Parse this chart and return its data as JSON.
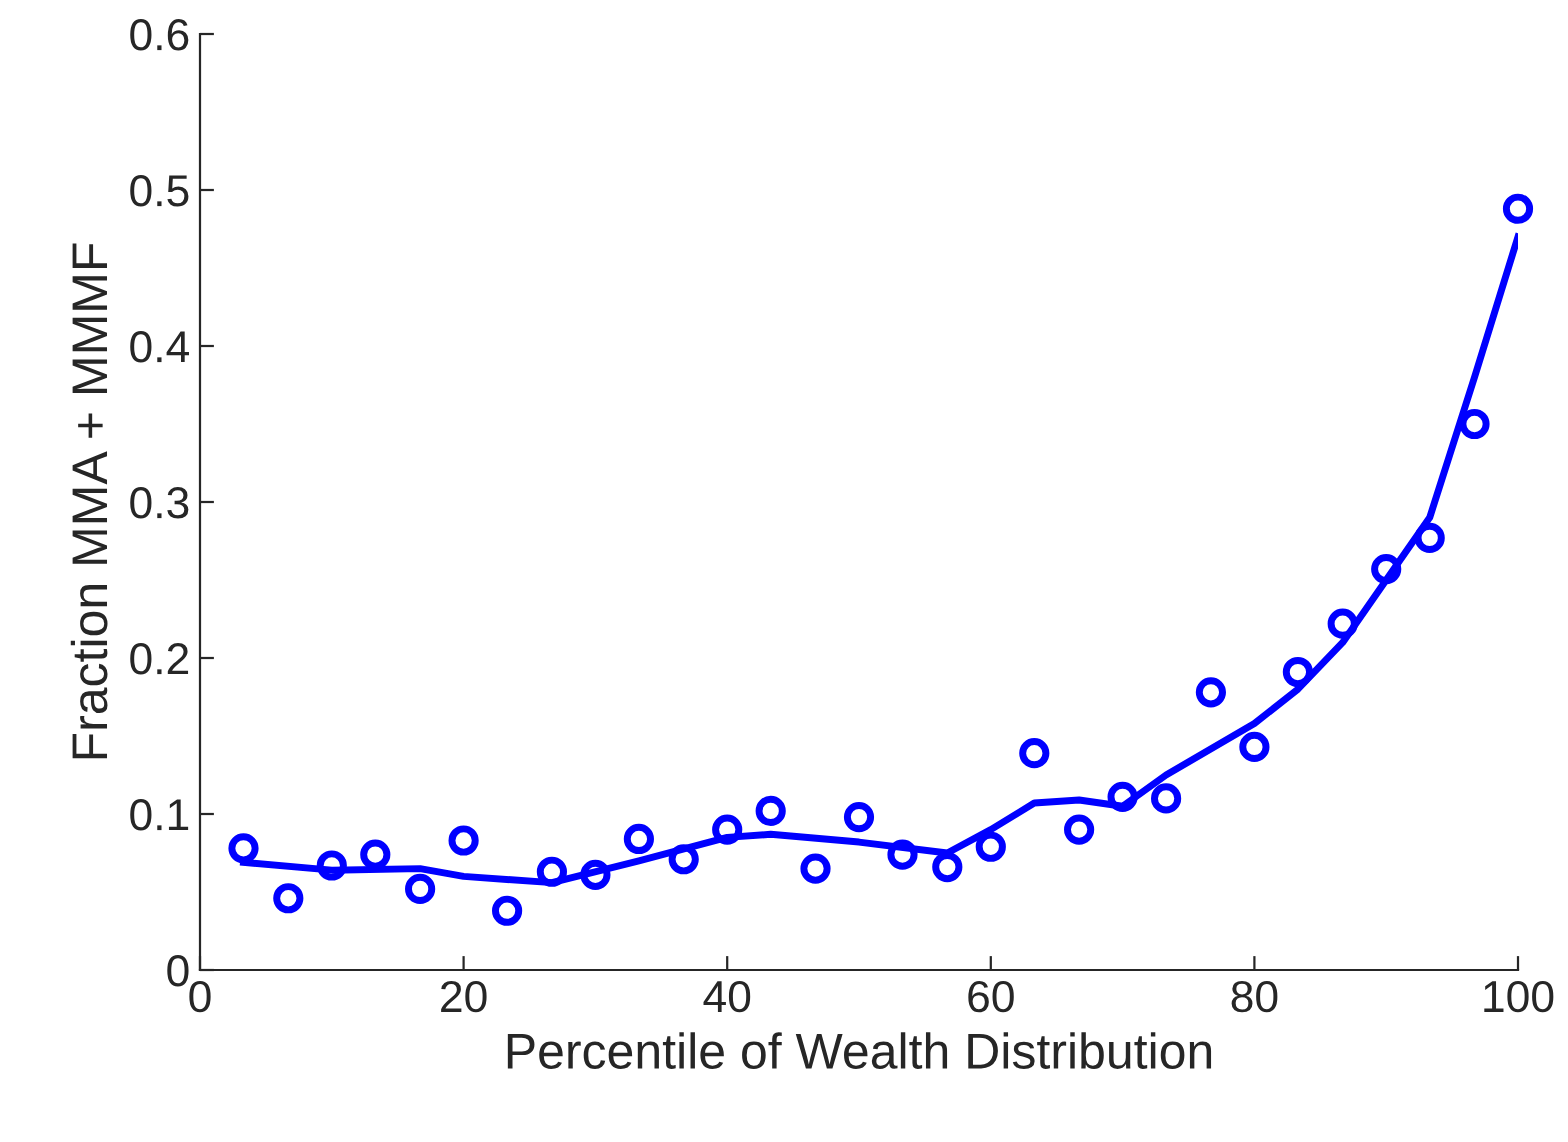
{
  "chart_data": {
    "type": "scatter",
    "xlabel": "Percentile of Wealth Distribution",
    "ylabel": "Fraction MMA + MMMF",
    "xlim": [
      0,
      100
    ],
    "ylim": [
      0,
      0.6
    ],
    "xticks": [
      0,
      20,
      40,
      60,
      80,
      100
    ],
    "yticks": [
      0,
      0.1,
      0.2,
      0.3,
      0.4,
      0.5,
      0.6
    ],
    "grid": false,
    "legend": false,
    "series": [
      {
        "color": "#0000ff",
        "marker": "circle",
        "x": [
          3.3,
          6.7,
          10,
          13.3,
          16.7,
          20,
          23.3,
          26.7,
          30,
          33.3,
          36.7,
          40,
          43.3,
          46.7,
          50,
          53.3,
          56.7,
          60,
          63.3,
          66.7,
          70,
          73.3,
          76.7,
          80,
          83.3,
          86.7,
          90,
          93.3,
          96.7,
          100
        ],
        "values": [
          0.078,
          0.046,
          0.067,
          0.074,
          0.052,
          0.083,
          0.038,
          0.063,
          0.061,
          0.084,
          0.071,
          0.09,
          0.102,
          0.065,
          0.098,
          0.074,
          0.066,
          0.079,
          0.139,
          0.09,
          0.111,
          0.11,
          0.178,
          0.143,
          0.191,
          0.222,
          0.257,
          0.277,
          0.35,
          0.488
        ]
      },
      {
        "type": "line",
        "color": "#0000ff",
        "marker": "none",
        "line_style": "solid",
        "x": [
          3.3,
          10,
          16.7,
          20,
          26.7,
          33.3,
          40,
          43.3,
          50,
          56.7,
          60,
          63.3,
          66.7,
          70,
          73.3,
          80,
          83.3,
          86.7,
          90,
          93.3,
          96.7,
          100
        ],
        "values": [
          0.069,
          0.064,
          0.065,
          0.06,
          0.056,
          0.07,
          0.085,
          0.087,
          0.082,
          0.075,
          0.09,
          0.107,
          0.109,
          0.105,
          0.125,
          0.158,
          0.18,
          0.21,
          0.25,
          0.29,
          0.38,
          0.47
        ]
      }
    ]
  }
}
